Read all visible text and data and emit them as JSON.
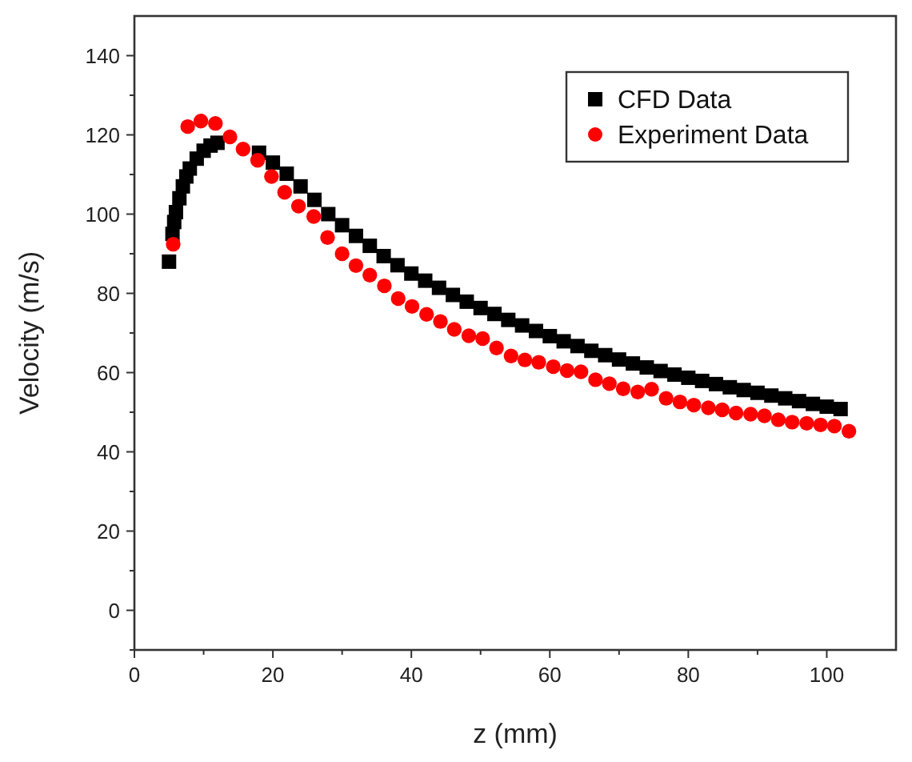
{
  "chart_data": {
    "type": "scatter",
    "xlabel": "z (mm)",
    "ylabel": "Velocity (m/s)",
    "xlim": [
      0,
      110
    ],
    "ylim": [
      -10,
      150
    ],
    "xticks": [
      0,
      {
        "value": 10,
        "label": null
      },
      20,
      {
        "value": 30,
        "label": null
      },
      40,
      {
        "value": 50,
        "label": null
      },
      60,
      {
        "value": 70,
        "label": null
      },
      80,
      {
        "value": 90,
        "label": null
      },
      100
    ],
    "yticks": [
      {
        "value": -10,
        "label": null
      },
      0,
      {
        "value": 10,
        "label": null
      },
      20,
      {
        "value": 30,
        "label": null
      },
      40,
      {
        "value": 50,
        "label": null
      },
      60,
      {
        "value": 70,
        "label": null
      },
      80,
      {
        "value": 90,
        "label": null
      },
      100,
      {
        "value": 110,
        "label": null
      },
      120,
      {
        "value": 130,
        "label": null
      },
      140
    ],
    "legend": "top right",
    "grid": false,
    "series": [
      {
        "name": "CFD Data",
        "color": "#000000",
        "marker": "square",
        "x": [
          5,
          5.5,
          5.75,
          6,
          6.5,
          7,
          7.5,
          8,
          9,
          10,
          11,
          12,
          18,
          20,
          22,
          24,
          26,
          28,
          30,
          32,
          34,
          36,
          38,
          40,
          42,
          44,
          46,
          48,
          50,
          52,
          54,
          56,
          58,
          60,
          62,
          64,
          66,
          68,
          70,
          72,
          74,
          76,
          78,
          80,
          82,
          84,
          86,
          88,
          90,
          92,
          94,
          96,
          98,
          100,
          102
        ],
        "values": [
          88,
          95,
          98,
          100.5,
          104,
          107,
          109.5,
          111.5,
          114,
          116,
          117.3,
          118,
          115.5,
          113,
          110.2,
          107,
          103.6,
          100,
          97.2,
          94.5,
          92,
          89.4,
          87.1,
          85,
          83.2,
          81.4,
          79.6,
          77.9,
          76.3,
          74.8,
          73.3,
          71.9,
          70.5,
          69.2,
          67.9,
          66.7,
          65.5,
          64.4,
          63.3,
          62.3,
          61.3,
          60.4,
          59.5,
          58.7,
          57.9,
          57.1,
          56.3,
          55.6,
          54.9,
          54.2,
          53.5,
          52.8,
          52.1,
          51.4,
          50.8
        ]
      },
      {
        "name": "Experiment Data",
        "color": "#ff0000",
        "marker": "circle",
        "x": [
          5.6,
          7.7,
          9.6,
          11.7,
          13.8,
          15.7,
          17.8,
          19.8,
          21.7,
          23.7,
          25.9,
          27.9,
          30,
          32,
          34,
          36.1,
          38.1,
          40.1,
          42.2,
          44.2,
          46.2,
          48.3,
          50.3,
          52.3,
          54.4,
          56.4,
          58.4,
          60.5,
          62.5,
          64.5,
          66.6,
          68.6,
          70.6,
          72.7,
          74.7,
          76.8,
          78.8,
          80.8,
          82.9,
          84.9,
          86.9,
          89,
          91,
          93,
          95,
          97.1,
          99.1,
          101.1,
          103.2
        ],
        "values": [
          92.4,
          122.1,
          123.5,
          122.9,
          119.5,
          116.4,
          113.6,
          109.5,
          105.5,
          102,
          99.4,
          94.1,
          90,
          87,
          84.6,
          81.9,
          78.7,
          76.7,
          74.7,
          72.9,
          70.9,
          69.3,
          68.6,
          66.2,
          64.2,
          63.2,
          62.6,
          61.5,
          60.5,
          60.2,
          58.2,
          57.2,
          55.9,
          55.1,
          55.8,
          53.5,
          52.6,
          51.8,
          51.1,
          50.6,
          49.8,
          49.5,
          49.1,
          48.1,
          47.5,
          47.2,
          46.8,
          46.5,
          45.2
        ]
      }
    ]
  }
}
